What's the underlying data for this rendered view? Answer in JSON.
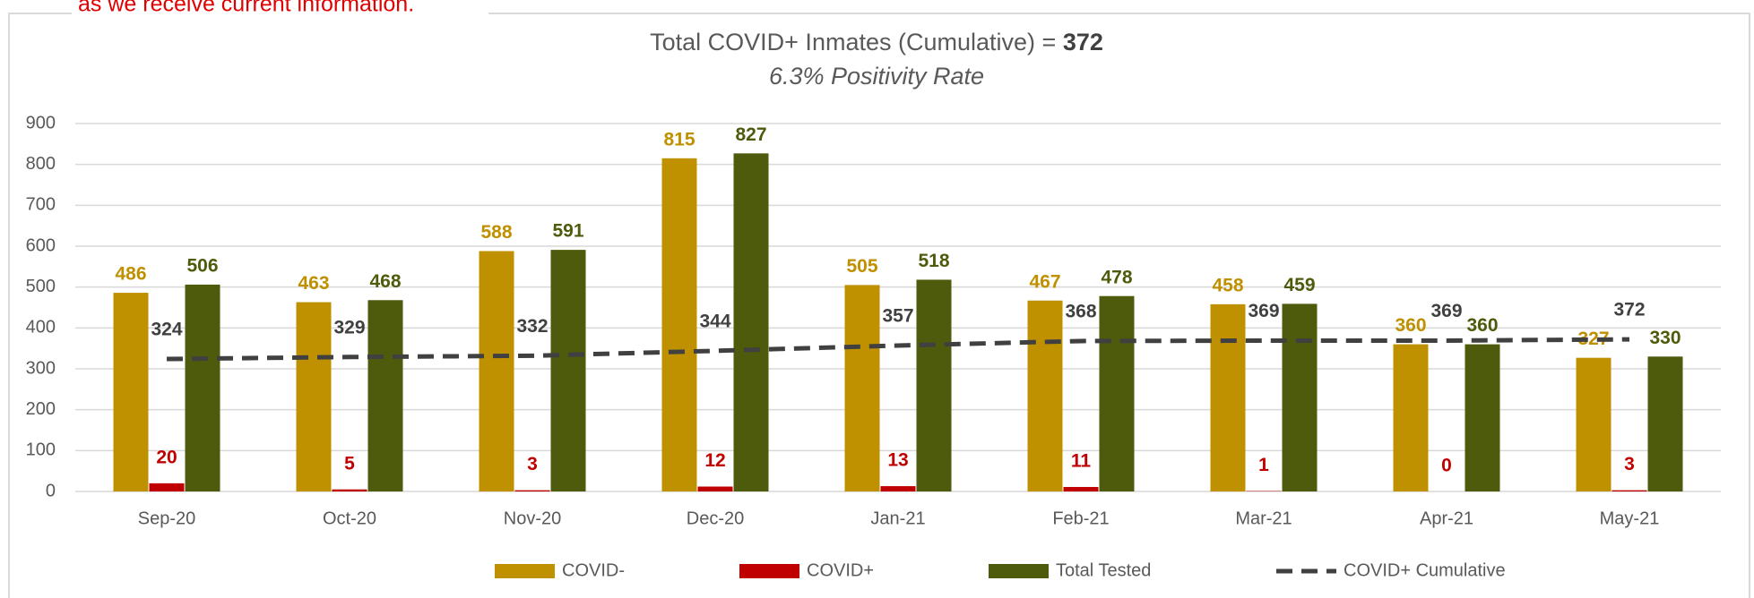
{
  "note": "as we receive current information.",
  "chart_data": {
    "type": "bar",
    "title": "Total COVID+ Inmates (Cumulative) =",
    "title_value": 372,
    "subtitle": "6.3% Positivity Rate",
    "categories": [
      "Sep-20",
      "Oct-20",
      "Nov-20",
      "Dec-20",
      "Jan-21",
      "Feb-21",
      "Mar-21",
      "Apr-21",
      "May-21"
    ],
    "series": [
      {
        "name": "COVID-",
        "color": "#bf9000",
        "values": [
          486,
          463,
          588,
          815,
          505,
          467,
          458,
          360,
          327
        ]
      },
      {
        "name": "COVID+",
        "color": "#c00000",
        "values": [
          20,
          5,
          3,
          12,
          13,
          11,
          1,
          0,
          3
        ]
      },
      {
        "name": "Total Tested",
        "color": "#4f5b0c",
        "values": [
          506,
          468,
          591,
          827,
          518,
          478,
          459,
          360,
          330
        ]
      },
      {
        "name": "COVID+ Cumulative",
        "color": "#404040",
        "type": "line",
        "dashed": true,
        "values": [
          324,
          329,
          332,
          344,
          357,
          368,
          369,
          369,
          372
        ]
      }
    ],
    "ylim": [
      0,
      900
    ],
    "yticks": [
      0,
      100,
      200,
      300,
      400,
      500,
      600,
      700,
      800,
      900
    ],
    "grid": true,
    "legend": "bottom"
  }
}
